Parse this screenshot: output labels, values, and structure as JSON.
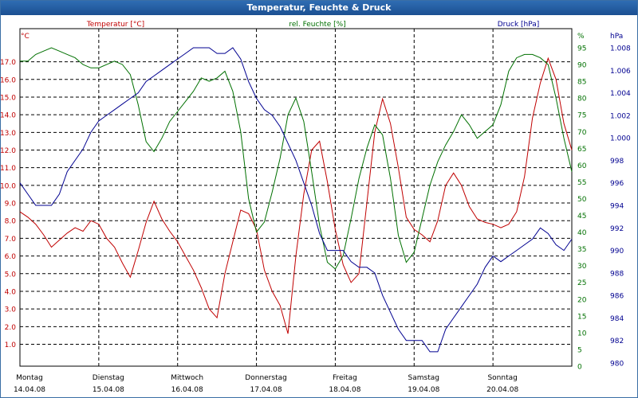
{
  "window": {
    "title": "Temperatur, Feuchte & Druck"
  },
  "chart_data": {
    "type": "line",
    "title": "Temperatur, Feuchte & Druck",
    "grid": true,
    "colors": {
      "temperature": "#c00000",
      "humidity": "#007000",
      "pressure": "#000090",
      "grid": "#000000"
    },
    "x_axis": {
      "range": [
        0,
        7
      ],
      "ticks": [
        {
          "day": "Montag",
          "date": "14.04.08"
        },
        {
          "day": "Dienstag",
          "date": "15.04.08"
        },
        {
          "day": "Mittwoch",
          "date": "16.04.08"
        },
        {
          "day": "Donnerstag",
          "date": "17.04.08"
        },
        {
          "day": "Freitag",
          "date": "18.04.08"
        },
        {
          "day": "Samstag",
          "date": "19.04.08"
        },
        {
          "day": "Sonntag",
          "date": "20.04.08"
        }
      ]
    },
    "axes": {
      "temperature": {
        "unit": "°C",
        "legend": "Temperatur [°C]",
        "range": [
          1.0,
          17.5
        ],
        "ticks": [
          "1.0",
          "2.0",
          "3.0",
          "4.0",
          "5.0",
          "6.0",
          "7.0",
          "8.0",
          "9.0",
          "10.0",
          "11.0",
          "12.0",
          "13.0",
          "14.0",
          "15.0",
          "16.0",
          "17.0"
        ]
      },
      "humidity": {
        "unit": "%",
        "legend": "rel. Feuchte [%]",
        "range": [
          0,
          95
        ],
        "ticks": [
          "0",
          "5",
          "10",
          "15",
          "20",
          "25",
          "30",
          "35",
          "40",
          "45",
          "50",
          "55",
          "60",
          "65",
          "70",
          "75",
          "80",
          "85",
          "90",
          "95"
        ]
      },
      "pressure": {
        "unit": "hPa",
        "legend": "Druck [hPa]",
        "range": [
          980,
          1008
        ],
        "ticks": [
          "980",
          "982",
          "984",
          "986",
          "988",
          "990",
          "992",
          "994",
          "996",
          "998",
          "1.000",
          "1.002",
          "1.004",
          "1.006",
          "1.008"
        ]
      }
    },
    "series": [
      {
        "name": "Temperatur [°C]",
        "axis": "temperature",
        "x": [
          0,
          0.1,
          0.2,
          0.3,
          0.4,
          0.5,
          0.6,
          0.7,
          0.8,
          0.9,
          1.0,
          1.1,
          1.2,
          1.3,
          1.4,
          1.5,
          1.6,
          1.7,
          1.8,
          1.9,
          2.0,
          2.1,
          2.2,
          2.3,
          2.4,
          2.5,
          2.6,
          2.7,
          2.8,
          2.9,
          3.0,
          3.1,
          3.2,
          3.3,
          3.4,
          3.5,
          3.6,
          3.7,
          3.8,
          3.9,
          4.0,
          4.1,
          4.2,
          4.3,
          4.4,
          4.5,
          4.6,
          4.7,
          4.8,
          4.9,
          5.0,
          5.1,
          5.2,
          5.3,
          5.4,
          5.5,
          5.6,
          5.7,
          5.8,
          5.9,
          6.0,
          6.1,
          6.2,
          6.3,
          6.4,
          6.5,
          6.6,
          6.7,
          6.8,
          6.9,
          7.0
        ],
        "y": [
          8.5,
          8.2,
          7.8,
          7.2,
          6.5,
          6.9,
          7.3,
          7.6,
          7.4,
          8.0,
          7.8,
          7.0,
          6.5,
          5.6,
          4.8,
          6.3,
          7.9,
          9.1,
          8.1,
          7.4,
          6.8,
          6.0,
          5.2,
          4.2,
          3.0,
          2.5,
          5.0,
          6.8,
          8.6,
          8.4,
          7.5,
          5.2,
          4.0,
          3.2,
          1.6,
          6.0,
          9.5,
          12.0,
          12.5,
          10.2,
          7.5,
          5.5,
          4.5,
          5.0,
          9.0,
          13.0,
          14.9,
          13.5,
          11.0,
          8.2,
          7.5,
          7.2,
          6.8,
          8.0,
          10.0,
          10.7,
          10.0,
          8.8,
          8.1,
          7.9,
          7.8,
          7.6,
          7.8,
          8.5,
          10.5,
          13.8,
          15.8,
          17.2,
          16.0,
          13.5,
          12.0
        ]
      },
      {
        "name": "rel. Feuchte [%]",
        "axis": "humidity",
        "x": [
          0,
          0.1,
          0.2,
          0.3,
          0.4,
          0.5,
          0.6,
          0.7,
          0.8,
          0.9,
          1.0,
          1.1,
          1.2,
          1.3,
          1.4,
          1.5,
          1.6,
          1.7,
          1.8,
          1.9,
          2.0,
          2.1,
          2.2,
          2.3,
          2.4,
          2.5,
          2.6,
          2.7,
          2.8,
          2.9,
          3.0,
          3.1,
          3.2,
          3.3,
          3.4,
          3.5,
          3.6,
          3.7,
          3.8,
          3.9,
          4.0,
          4.1,
          4.2,
          4.3,
          4.4,
          4.5,
          4.6,
          4.7,
          4.8,
          4.9,
          5.0,
          5.1,
          5.2,
          5.3,
          5.4,
          5.5,
          5.6,
          5.7,
          5.8,
          5.9,
          6.0,
          6.1,
          6.2,
          6.3,
          6.4,
          6.5,
          6.6,
          6.7,
          6.8,
          6.9,
          7.0
        ],
        "y": [
          91,
          91,
          93,
          94,
          95,
          94,
          93,
          92,
          90,
          89,
          89,
          90,
          91,
          90,
          87,
          78,
          67,
          64,
          68,
          73,
          76,
          79,
          82,
          86,
          85,
          86,
          88,
          82,
          70,
          50,
          40,
          43,
          52,
          62,
          75,
          80,
          73,
          58,
          42,
          31,
          29,
          33,
          44,
          56,
          65,
          72,
          69,
          56,
          39,
          31,
          34,
          44,
          54,
          61,
          66,
          70,
          75,
          72,
          68,
          70,
          72,
          78,
          88,
          92,
          93,
          93,
          92,
          90,
          80,
          68,
          58
        ]
      },
      {
        "name": "Druck [hPa]",
        "axis": "pressure",
        "x": [
          0,
          0.1,
          0.2,
          0.3,
          0.4,
          0.5,
          0.6,
          0.7,
          0.8,
          0.9,
          1.0,
          1.1,
          1.2,
          1.3,
          1.4,
          1.5,
          1.6,
          1.7,
          1.8,
          1.9,
          2.0,
          2.1,
          2.2,
          2.3,
          2.4,
          2.5,
          2.6,
          2.7,
          2.8,
          2.9,
          3.0,
          3.1,
          3.2,
          3.3,
          3.4,
          3.5,
          3.6,
          3.7,
          3.8,
          3.9,
          4.0,
          4.1,
          4.2,
          4.3,
          4.4,
          4.5,
          4.6,
          4.7,
          4.8,
          4.9,
          5.0,
          5.1,
          5.2,
          5.3,
          5.4,
          5.5,
          5.6,
          5.7,
          5.8,
          5.9,
          6.0,
          6.1,
          6.2,
          6.3,
          6.4,
          6.5,
          6.6,
          6.7,
          6.8,
          6.9,
          7.0
        ],
        "y": [
          996,
          995,
          994,
          994,
          994,
          995,
          997,
          998,
          999,
          1000.5,
          1001.5,
          1002,
          1002.5,
          1003,
          1003.5,
          1004,
          1005,
          1005.5,
          1006,
          1006.5,
          1007,
          1007.5,
          1008,
          1008,
          1008,
          1007.5,
          1007.5,
          1008,
          1007,
          1005,
          1003.5,
          1002.5,
          1002,
          1001,
          999.5,
          998,
          996,
          994,
          991.5,
          990,
          990,
          990,
          989,
          988.5,
          988.5,
          988,
          986,
          984.5,
          983,
          982,
          982,
          982,
          981,
          981,
          983,
          984,
          985,
          986,
          987,
          988.5,
          989.5,
          989,
          989.5,
          990,
          990.5,
          991,
          992,
          991.5,
          990.5,
          990,
          991
        ]
      }
    ]
  }
}
